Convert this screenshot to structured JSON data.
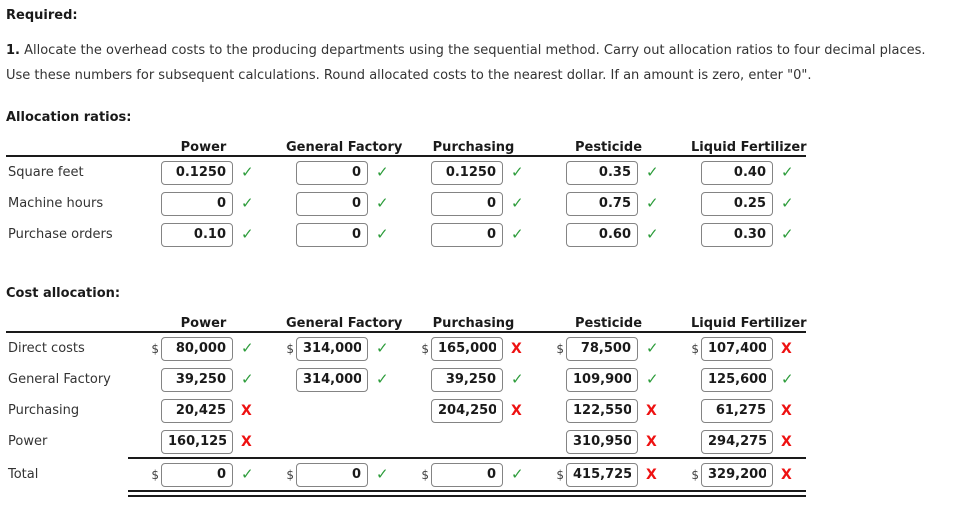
{
  "page": {
    "required_label": "Required:",
    "instruction_number": "1.",
    "instruction_text": " Allocate the overhead costs to the producing departments using the sequential method. Carry out allocation ratios to four decimal places. Use these numbers for subsequent calculations. Round allocated costs to the nearest dollar. If an amount is zero, enter \"0\"."
  },
  "marks": {
    "correct_glyph": "✓",
    "incorrect_glyph": "X"
  },
  "colors": {
    "correct": "#2e9d3c",
    "incorrect": "#ee1111",
    "field_border": "#848484",
    "rule": "#1a1a1a"
  },
  "ratio_table": {
    "title": "Allocation ratios:",
    "columns": [
      "Power",
      "General Factory",
      "Purchasing",
      "Pesticide",
      "Liquid Fertilizer"
    ],
    "rows": [
      {
        "label": "Square feet",
        "cells": [
          {
            "value": "0.1250",
            "mark": "correct"
          },
          {
            "value": "0",
            "mark": "correct"
          },
          {
            "value": "0.1250",
            "mark": "correct"
          },
          {
            "value": "0.35",
            "mark": "correct"
          },
          {
            "value": "0.40",
            "mark": "correct"
          }
        ]
      },
      {
        "label": "Machine hours",
        "cells": [
          {
            "value": "0",
            "mark": "correct"
          },
          {
            "value": "0",
            "mark": "correct"
          },
          {
            "value": "0",
            "mark": "correct"
          },
          {
            "value": "0.75",
            "mark": "correct"
          },
          {
            "value": "0.25",
            "mark": "correct"
          }
        ]
      },
      {
        "label": "Purchase orders",
        "cells": [
          {
            "value": "0.10",
            "mark": "correct"
          },
          {
            "value": "0",
            "mark": "correct"
          },
          {
            "value": "0",
            "mark": "correct"
          },
          {
            "value": "0.60",
            "mark": "correct"
          },
          {
            "value": "0.30",
            "mark": "correct"
          }
        ]
      }
    ]
  },
  "cost_table": {
    "title": "Cost allocation:",
    "currency": "$",
    "columns": [
      "Power",
      "General Factory",
      "Purchasing",
      "Pesticide",
      "Liquid Fertilizer"
    ],
    "rows": [
      {
        "label": "Direct costs",
        "cells": [
          {
            "value": "80,000",
            "mark": "correct"
          },
          {
            "value": "314,000",
            "mark": "correct"
          },
          {
            "value": "165,000",
            "mark": "incorrect"
          },
          {
            "value": "78,500",
            "mark": "correct"
          },
          {
            "value": "107,400",
            "mark": "incorrect"
          }
        ]
      },
      {
        "label": "General Factory",
        "cells": [
          {
            "value": "39,250",
            "mark": "correct"
          },
          {
            "value": "314,000",
            "mark": "correct"
          },
          {
            "value": "39,250",
            "mark": "correct"
          },
          {
            "value": "109,900",
            "mark": "correct"
          },
          {
            "value": "125,600",
            "mark": "correct"
          }
        ]
      },
      {
        "label": "Purchasing",
        "cells": [
          {
            "value": "20,425",
            "mark": "incorrect"
          },
          null,
          {
            "value": "204,250",
            "mark": "incorrect"
          },
          {
            "value": "122,550",
            "mark": "incorrect"
          },
          {
            "value": "61,275",
            "mark": "incorrect"
          }
        ]
      },
      {
        "label": "Power",
        "cells": [
          {
            "value": "160,125",
            "mark": "incorrect"
          },
          null,
          null,
          {
            "value": "310,950",
            "mark": "incorrect"
          },
          {
            "value": "294,275",
            "mark": "incorrect"
          }
        ]
      },
      {
        "label": "Total",
        "cells": [
          {
            "value": "0",
            "mark": "correct"
          },
          {
            "value": "0",
            "mark": "correct"
          },
          {
            "value": "0",
            "mark": "correct"
          },
          {
            "value": "415,725",
            "mark": "incorrect"
          },
          {
            "value": "329,200",
            "mark": "incorrect"
          }
        ]
      }
    ]
  }
}
